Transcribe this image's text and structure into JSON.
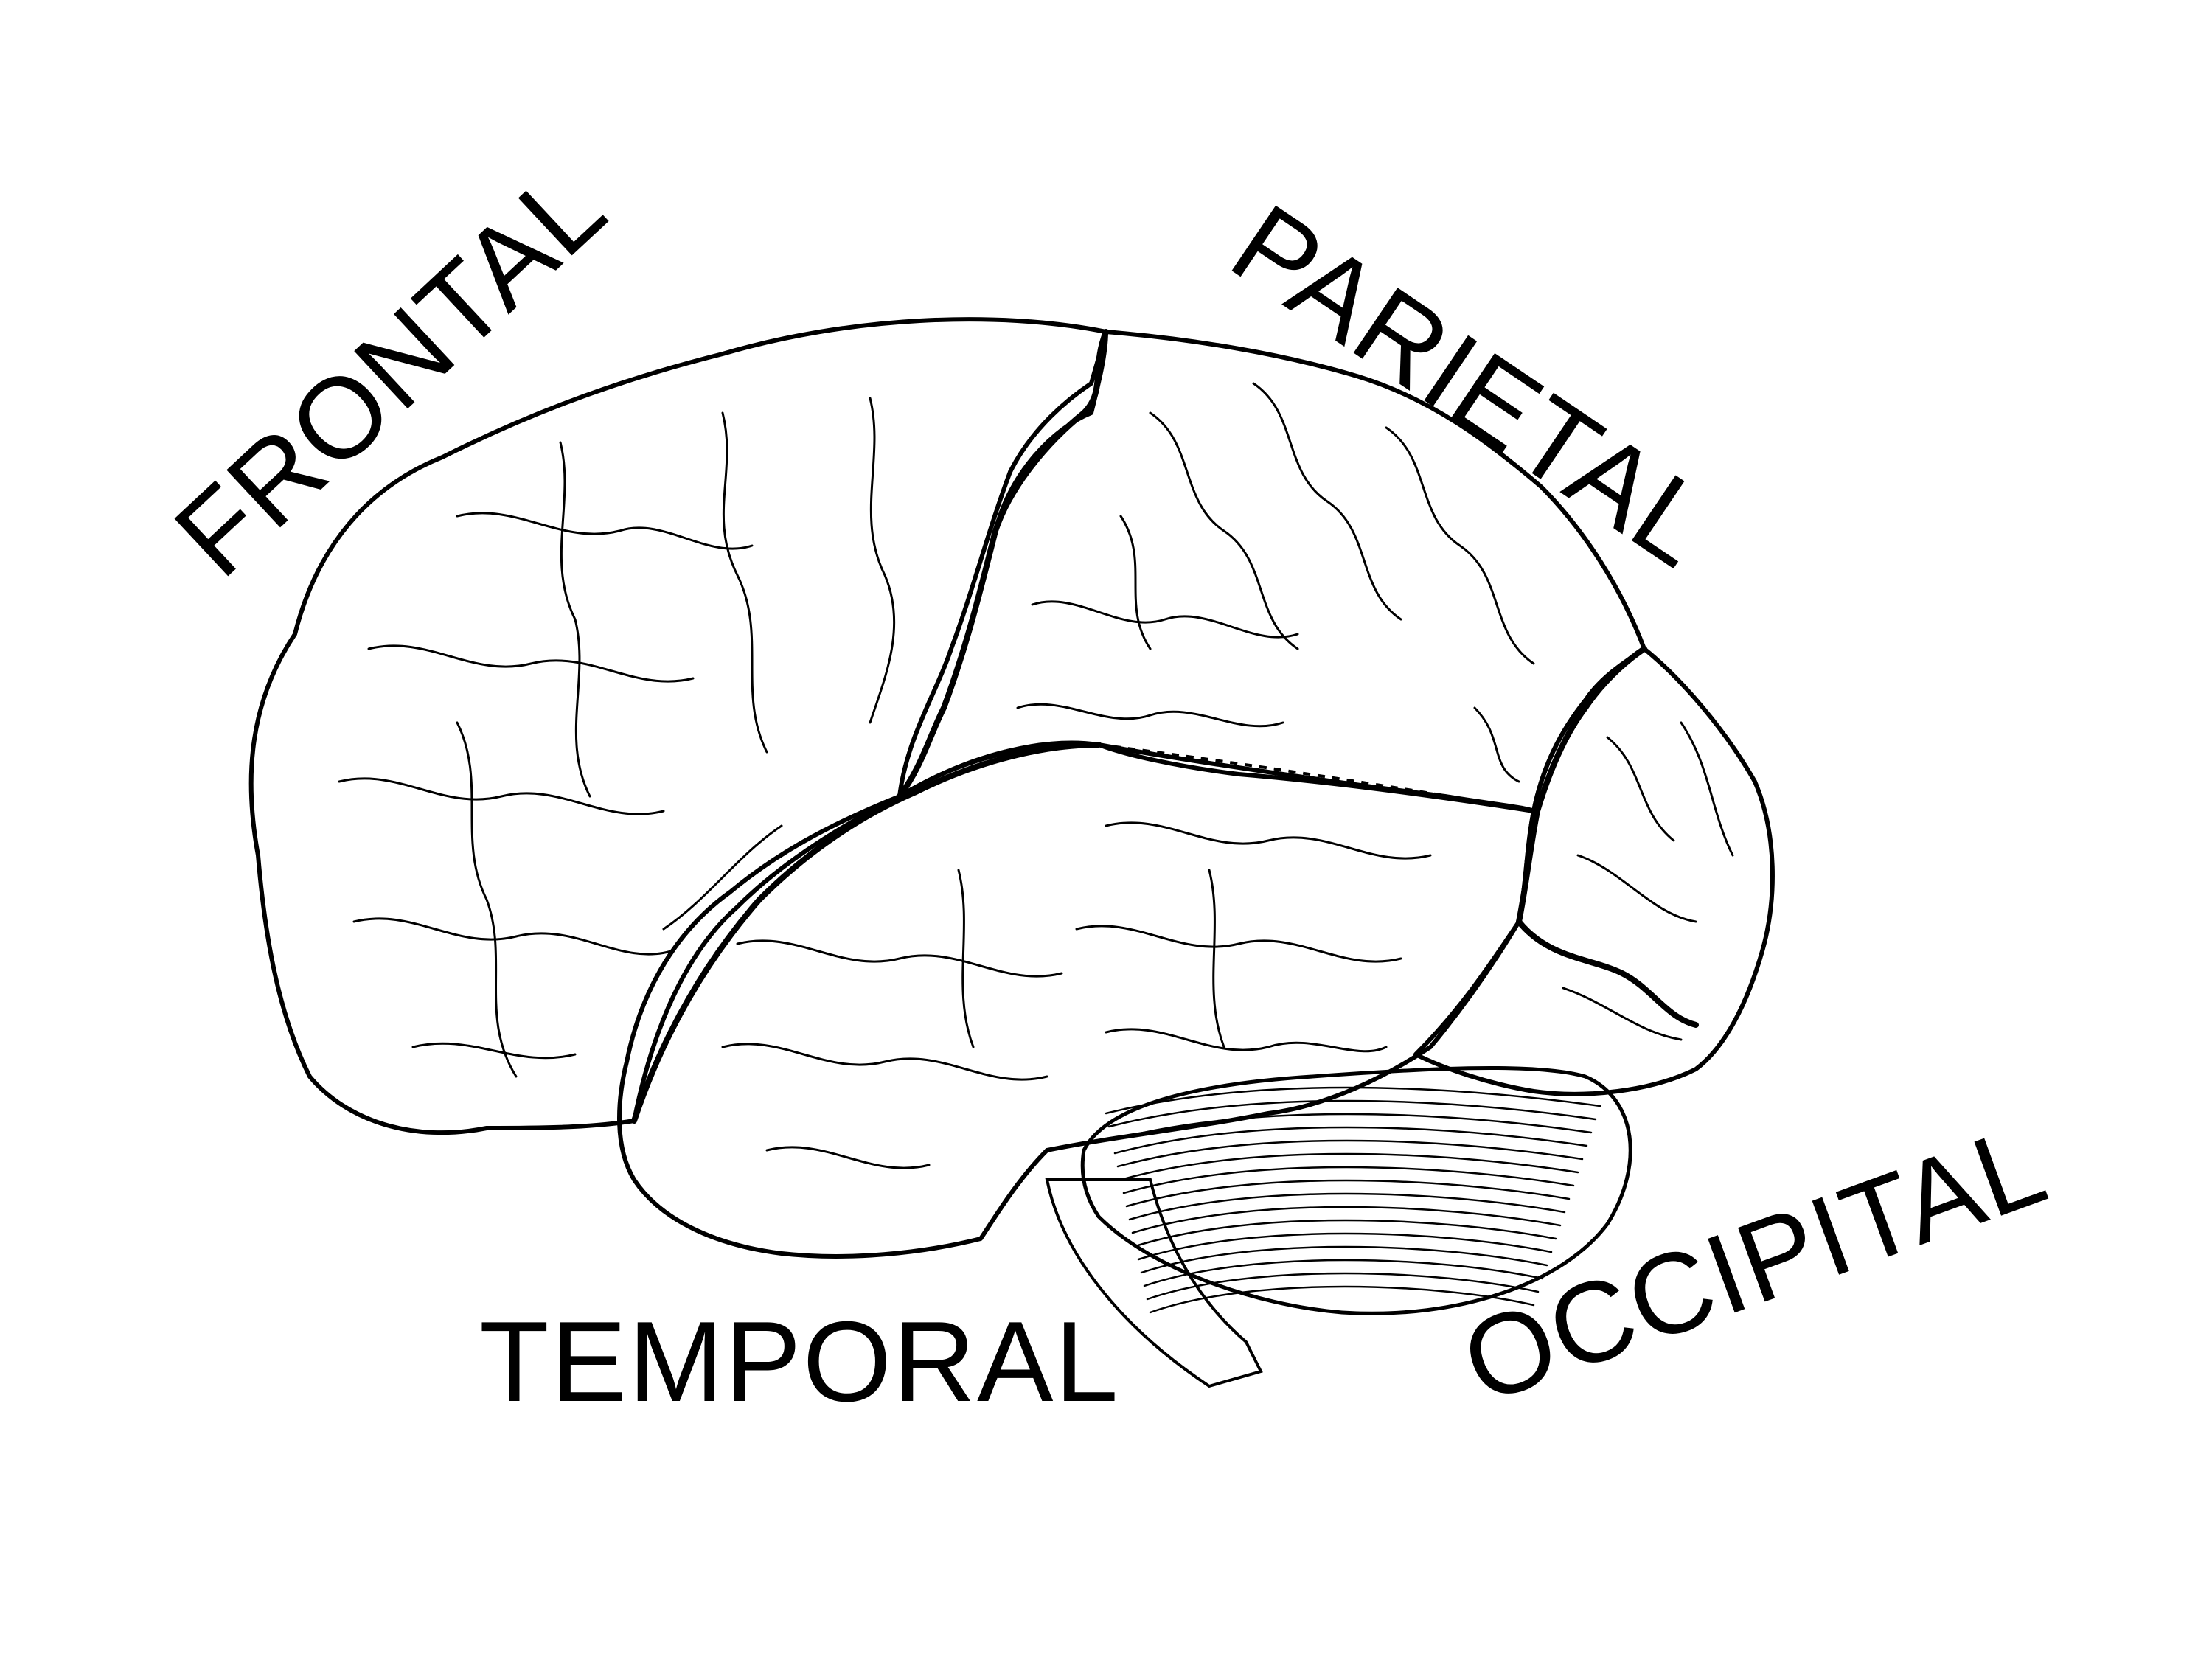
{
  "labels": {
    "frontal": "FRONTAL",
    "parietal": "PARIETAL",
    "temporal": "TEMPORAL",
    "occipital": "OCCIPITAL"
  },
  "colors": {
    "frontal": "#c3d6ea",
    "parietal": "#f9f6a8",
    "temporal": "#c1d1a3",
    "occipital": "#d9a6b0",
    "cerebellum": "#ffffff",
    "outline": "#000000",
    "background": "#ffffff"
  }
}
